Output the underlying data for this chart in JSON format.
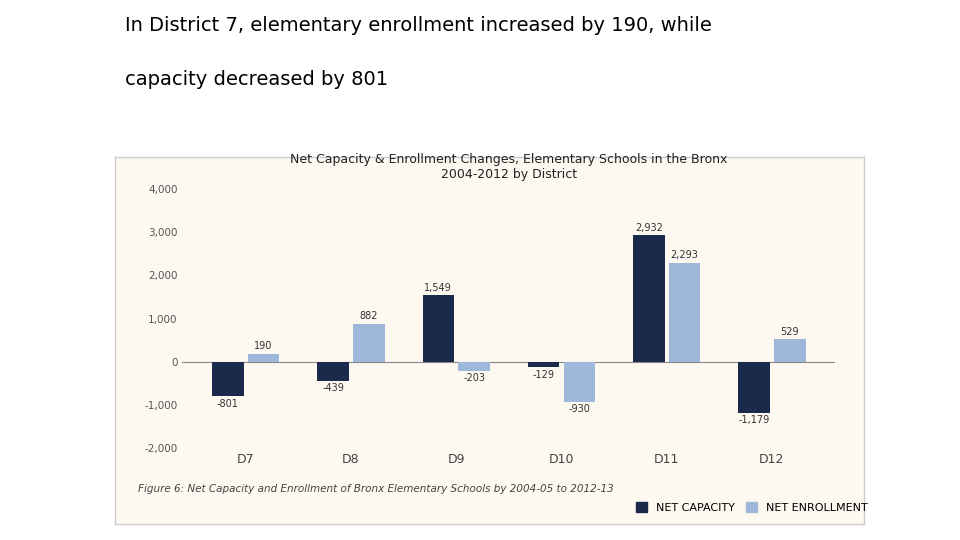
{
  "title_line1": "Net Capacity & Enrollment Changes, Elementary Schools in the Bronx",
  "title_line2": "2004-2012 by District",
  "districts": [
    "D7",
    "D8",
    "D9",
    "D10",
    "D11",
    "D12"
  ],
  "net_capacity": [
    -801,
    -439,
    1549,
    -129,
    2932,
    -1179
  ],
  "net_enrollment": [
    190,
    882,
    -203,
    -930,
    2293,
    529
  ],
  "capacity_color": "#1b2a4a",
  "enrollment_color": "#9db8d9",
  "ylim": [
    -2000,
    4000
  ],
  "yticks": [
    -2000,
    -1000,
    0,
    1000,
    2000,
    3000,
    4000
  ],
  "ytick_labels": [
    "-2,000",
    "-1,000",
    "0",
    "1,000",
    "2,000",
    "3,000",
    "4,000"
  ],
  "bg_color": "#fdf8f0",
  "border_color": "#cccccc",
  "figure_caption": "Figure 6: Net Capacity and Enrollment of Bronx Elementary Schools by 2004-05 to 2012-13",
  "legend_capacity": "NET CAPACITY",
  "legend_enrollment": "NET ENROLLMENT",
  "heading_line1": "In District 7, elementary enrollment increased by 190, while",
  "heading_line2": "capacity decreased by 801"
}
